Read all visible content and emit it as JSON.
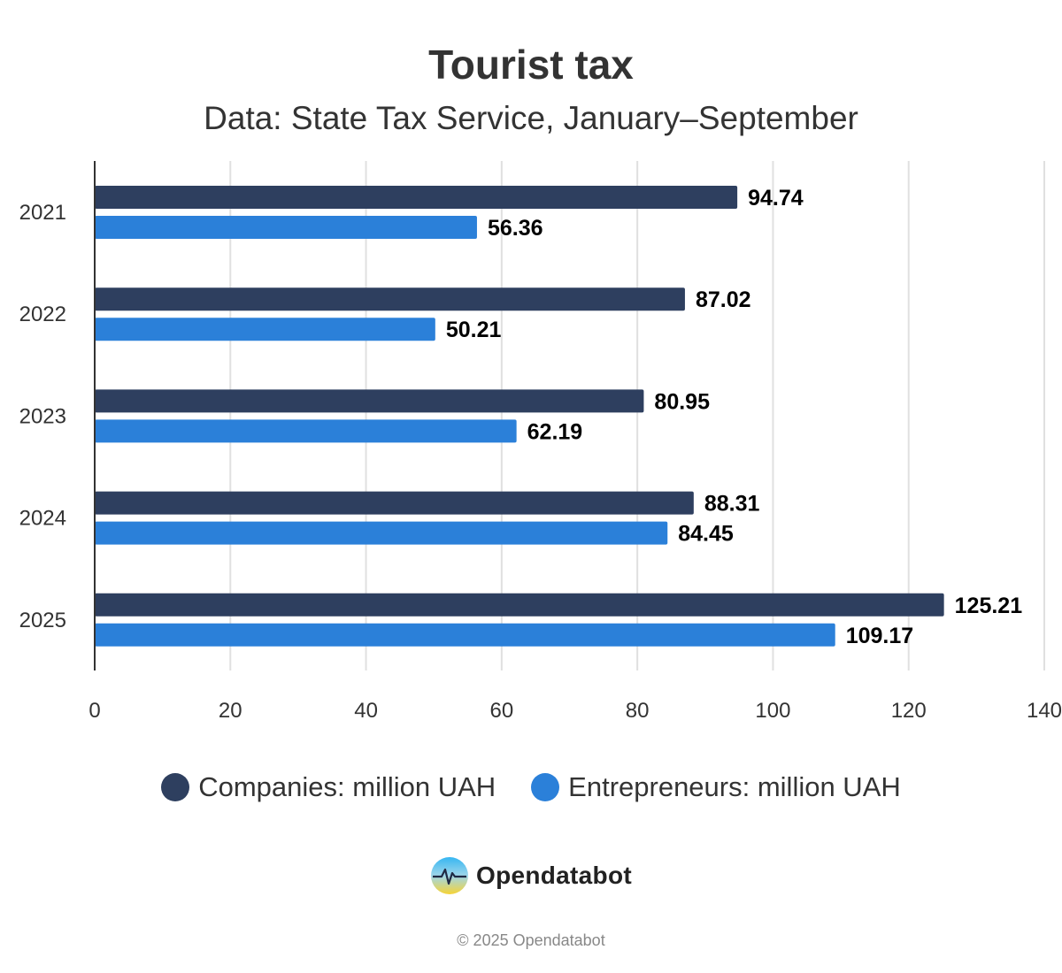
{
  "chart_data": {
    "type": "bar",
    "orientation": "horizontal",
    "title": "Tourist tax",
    "subtitle": "Data: State Tax Service, January–September",
    "categories": [
      "2021",
      "2022",
      "2023",
      "2024",
      "2025"
    ],
    "series": [
      {
        "name": "Companies: million UAH",
        "color": "#2e3f5f",
        "values": [
          94.74,
          87.02,
          80.95,
          88.31,
          125.21
        ]
      },
      {
        "name": "Entrepreneurs: million UAH",
        "color": "#2b80d9",
        "values": [
          56.36,
          50.21,
          62.19,
          84.45,
          109.17
        ]
      }
    ],
    "value_labels": [
      [
        "94.74",
        "87.02",
        "80.95",
        "88.31",
        "125.21"
      ],
      [
        "56.36",
        "50.21",
        "62.19",
        "84.45",
        "109.17"
      ]
    ],
    "xlim": [
      0,
      140
    ],
    "x_ticks": [
      "0",
      "20",
      "40",
      "60",
      "80",
      "100",
      "120",
      "140"
    ],
    "grid": true,
    "legend_position": "bottom"
  },
  "branding": {
    "logo_text": "Opendatabot",
    "logo_icon": "opendatabot-logo-icon",
    "copyright": "© 2025 Opendatabot"
  }
}
